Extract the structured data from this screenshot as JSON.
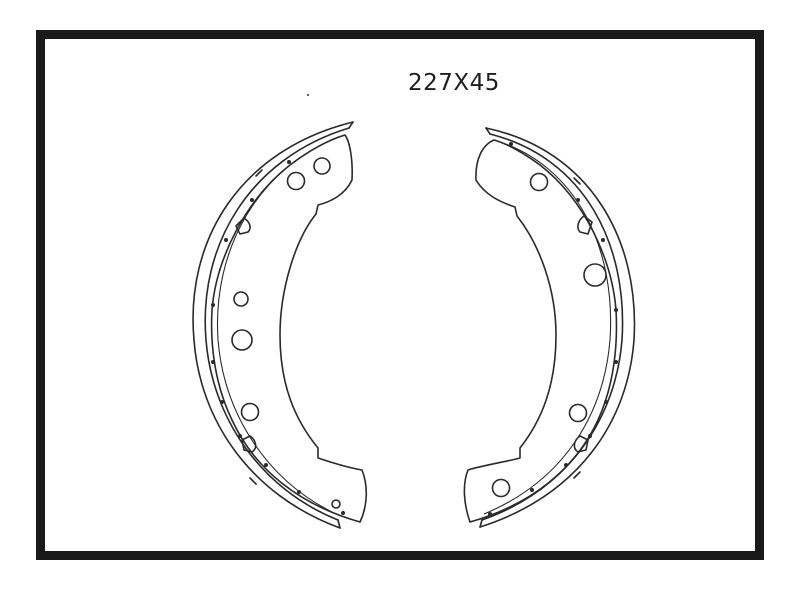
{
  "drawing": {
    "size_label": "227X45"
  }
}
